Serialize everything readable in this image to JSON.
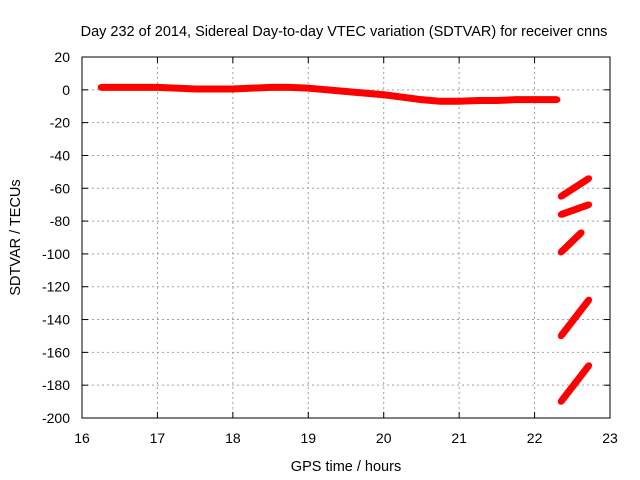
{
  "chart_data": {
    "type": "scatter",
    "title": "Day 232 of 2014, Sidereal Day-to-day VTEC variation (SDTVAR) for receiver cnns",
    "xlabel": "GPS time / hours",
    "ylabel": "SDTVAR / TECUs",
    "xlim": [
      16,
      23
    ],
    "ylim": [
      -200,
      20
    ],
    "xticks": [
      16,
      17,
      18,
      19,
      20,
      21,
      22,
      23
    ],
    "yticks": [
      20,
      0,
      -20,
      -40,
      -60,
      -80,
      -100,
      -120,
      -140,
      -160,
      -180,
      -200
    ],
    "grid": true,
    "legend": "none",
    "series_color": "#ff0000",
    "series": [
      {
        "x": [
          16.25,
          16.5,
          16.75,
          17.0,
          17.25,
          17.5,
          17.75,
          18.0,
          18.25,
          18.5,
          18.75,
          19.0,
          19.25,
          19.5,
          19.75,
          20.0,
          20.25,
          20.5,
          20.75,
          21.0,
          21.25,
          21.5,
          21.75,
          22.0,
          22.3
        ],
        "y": [
          1.5,
          1.5,
          1.5,
          1.5,
          1.0,
          0.5,
          0.5,
          0.5,
          1.0,
          1.5,
          1.5,
          1.0,
          0.0,
          -1.0,
          -2.0,
          -3.0,
          -4.5,
          -6.0,
          -7.0,
          -7.0,
          -6.5,
          -6.5,
          -6.0,
          -6.0,
          -6.0
        ]
      },
      {
        "x": [
          22.35,
          22.72
        ],
        "y": [
          -65,
          -54
        ]
      },
      {
        "x": [
          22.35,
          22.72
        ],
        "y": [
          -76,
          -70
        ]
      },
      {
        "x": [
          22.35,
          22.62
        ],
        "y": [
          -99,
          -87
        ]
      },
      {
        "x": [
          22.35,
          22.72
        ],
        "y": [
          -150,
          -128
        ]
      },
      {
        "x": [
          22.35,
          22.72
        ],
        "y": [
          -190,
          -168
        ]
      }
    ]
  }
}
